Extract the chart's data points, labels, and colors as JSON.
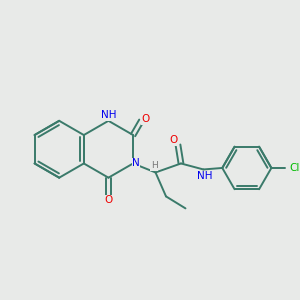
{
  "bg_color": "#e8eae8",
  "bond_color": "#3a7a6a",
  "atom_colors": {
    "N": "#0000ee",
    "O": "#ee0000",
    "Cl": "#00bb00",
    "H": "#777777"
  },
  "bond_width": 1.4,
  "font_size": 7.5
}
